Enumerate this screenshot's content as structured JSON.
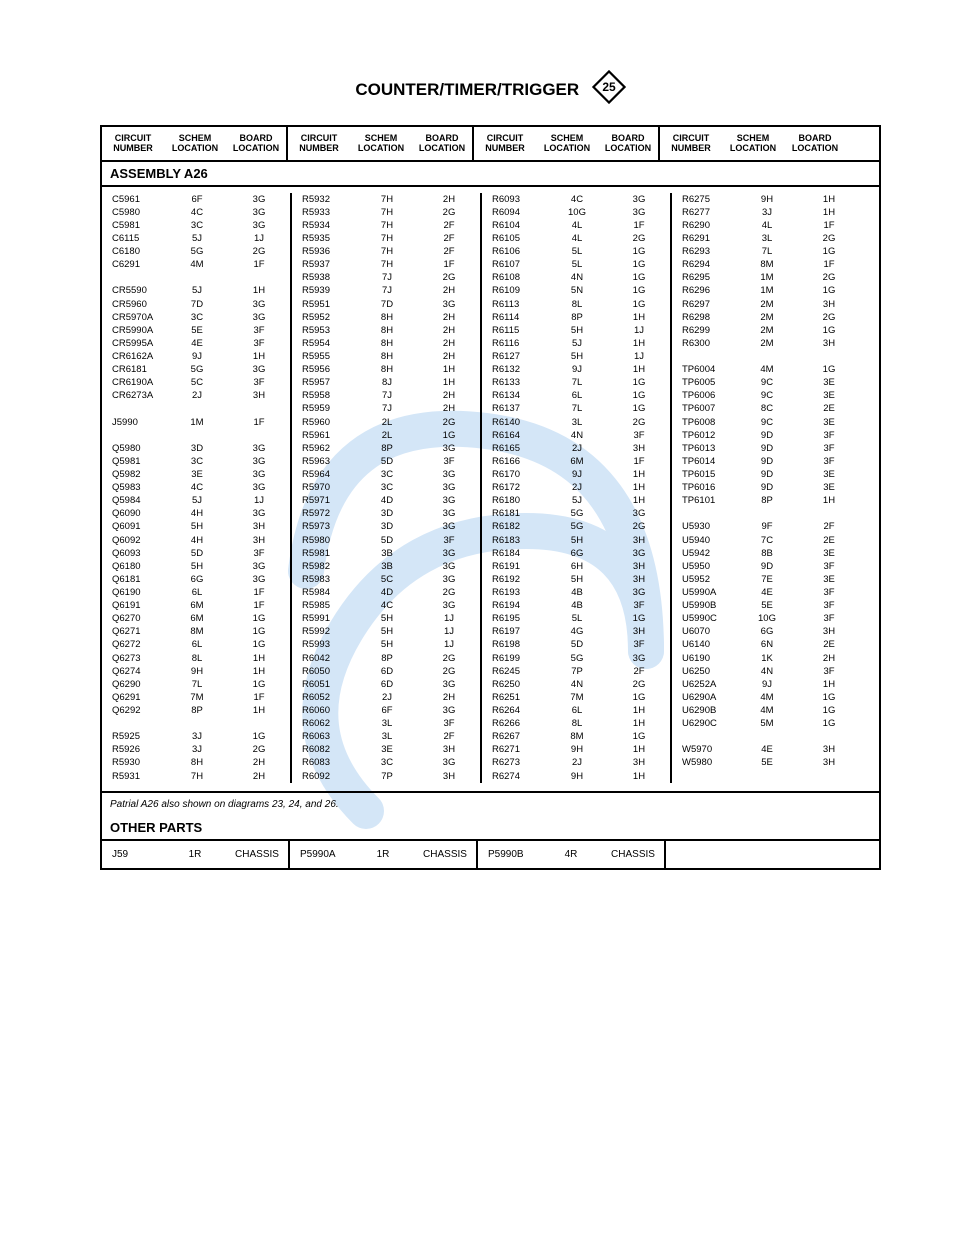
{
  "title": "COUNTER/TIMER/TRIGGER",
  "diamond_number": "25",
  "headers": {
    "circuit_number": "CIRCUIT NUMBER",
    "schem_location": "SCHEM LOCATION",
    "board_location": "BOARD LOCATION"
  },
  "section_a26": "ASSEMBLY A26",
  "note": "Patrial A26 also shown on diagrams 23, 24, and 26.",
  "section_other": "OTHER PARTS",
  "colors": {
    "border": "#000000",
    "text": "#000000",
    "watermark": "#cfe3f5",
    "background": "#ffffff"
  },
  "columns": [
    [
      [
        "C5961",
        "6F",
        "3G"
      ],
      [
        "C5980",
        "4C",
        "3G"
      ],
      [
        "C5981",
        "3C",
        "3G"
      ],
      [
        "C6115",
        "5J",
        "1J"
      ],
      [
        "C6180",
        "5G",
        "2G"
      ],
      [
        "C6291",
        "4M",
        "1F"
      ],
      [
        "",
        "",
        ""
      ],
      [
        "CR5590",
        "5J",
        "1H"
      ],
      [
        "CR5960",
        "7D",
        "3G"
      ],
      [
        "CR5970A",
        "3C",
        "3G"
      ],
      [
        "CR5990A",
        "5E",
        "3F"
      ],
      [
        "CR5995A",
        "4E",
        "3F"
      ],
      [
        "CR6162A",
        "9J",
        "1H"
      ],
      [
        "CR6181",
        "5G",
        "3G"
      ],
      [
        "CR6190A",
        "5C",
        "3F"
      ],
      [
        "CR6273A",
        "2J",
        "3H"
      ],
      [
        "",
        "",
        ""
      ],
      [
        "J5990",
        "1M",
        "1F"
      ],
      [
        "",
        "",
        ""
      ],
      [
        "Q5980",
        "3D",
        "3G"
      ],
      [
        "Q5981",
        "3C",
        "3G"
      ],
      [
        "Q5982",
        "3E",
        "3G"
      ],
      [
        "Q5983",
        "4C",
        "3G"
      ],
      [
        "Q5984",
        "5J",
        "1J"
      ],
      [
        "Q6090",
        "4H",
        "3G"
      ],
      [
        "Q6091",
        "5H",
        "3H"
      ],
      [
        "Q6092",
        "4H",
        "3H"
      ],
      [
        "Q6093",
        "5D",
        "3F"
      ],
      [
        "Q6180",
        "5H",
        "3G"
      ],
      [
        "Q6181",
        "6G",
        "3G"
      ],
      [
        "Q6190",
        "6L",
        "1F"
      ],
      [
        "Q6191",
        "6M",
        "1F"
      ],
      [
        "Q6270",
        "6M",
        "1G"
      ],
      [
        "Q6271",
        "8M",
        "1G"
      ],
      [
        "Q6272",
        "6L",
        "1G"
      ],
      [
        "Q6273",
        "8L",
        "1H"
      ],
      [
        "Q6274",
        "9H",
        "1H"
      ],
      [
        "Q6290",
        "7L",
        "1G"
      ],
      [
        "Q6291",
        "7M",
        "1F"
      ],
      [
        "Q6292",
        "8P",
        "1H"
      ],
      [
        "",
        "",
        ""
      ],
      [
        "R5925",
        "3J",
        "1G"
      ],
      [
        "R5926",
        "3J",
        "2G"
      ],
      [
        "R5930",
        "8H",
        "2H"
      ],
      [
        "R5931",
        "7H",
        "2H"
      ]
    ],
    [
      [
        "R5932",
        "7H",
        "2H"
      ],
      [
        "R5933",
        "7H",
        "2G"
      ],
      [
        "R5934",
        "7H",
        "2F"
      ],
      [
        "R5935",
        "7H",
        "2F"
      ],
      [
        "R5936",
        "7H",
        "2F"
      ],
      [
        "R5937",
        "7H",
        "1F"
      ],
      [
        "R5938",
        "7J",
        "2G"
      ],
      [
        "R5939",
        "7J",
        "2H"
      ],
      [
        "R5951",
        "7D",
        "3G"
      ],
      [
        "R5952",
        "8H",
        "2H"
      ],
      [
        "R5953",
        "8H",
        "2H"
      ],
      [
        "R5954",
        "8H",
        "2H"
      ],
      [
        "R5955",
        "8H",
        "2H"
      ],
      [
        "R5956",
        "8H",
        "1H"
      ],
      [
        "R5957",
        "8J",
        "1H"
      ],
      [
        "R5958",
        "7J",
        "2H"
      ],
      [
        "R5959",
        "7J",
        "2H"
      ],
      [
        "R5960",
        "2L",
        "2G"
      ],
      [
        "R5961",
        "2L",
        "1G"
      ],
      [
        "R5962",
        "8P",
        "3G"
      ],
      [
        "R5963",
        "5D",
        "3F"
      ],
      [
        "R5964",
        "3C",
        "3G"
      ],
      [
        "R5970",
        "3C",
        "3G"
      ],
      [
        "R5971",
        "4D",
        "3G"
      ],
      [
        "R5972",
        "3D",
        "3G"
      ],
      [
        "R5973",
        "3D",
        "3G"
      ],
      [
        "R5980",
        "5D",
        "3F"
      ],
      [
        "R5981",
        "3B",
        "3G"
      ],
      [
        "R5982",
        "3B",
        "3G"
      ],
      [
        "R5983",
        "5C",
        "3G"
      ],
      [
        "R5984",
        "4D",
        "2G"
      ],
      [
        "R5985",
        "4C",
        "3G"
      ],
      [
        "R5991",
        "5H",
        "1J"
      ],
      [
        "R5992",
        "5H",
        "1J"
      ],
      [
        "R5993",
        "5H",
        "1J"
      ],
      [
        "R6042",
        "8P",
        "2G"
      ],
      [
        "R6050",
        "6D",
        "2G"
      ],
      [
        "R6051",
        "6D",
        "3G"
      ],
      [
        "R6052",
        "2J",
        "2H"
      ],
      [
        "R6060",
        "6F",
        "3G"
      ],
      [
        "R6062",
        "3L",
        "3F"
      ],
      [
        "R6063",
        "3L",
        "2F"
      ],
      [
        "R6082",
        "3E",
        "3H"
      ],
      [
        "R6083",
        "3C",
        "3G"
      ],
      [
        "R6092",
        "7P",
        "3H"
      ]
    ],
    [
      [
        "R6093",
        "4C",
        "3G"
      ],
      [
        "R6094",
        "10G",
        "3G"
      ],
      [
        "R6104",
        "4L",
        "1F"
      ],
      [
        "R6105",
        "4L",
        "2G"
      ],
      [
        "R6106",
        "5L",
        "1G"
      ],
      [
        "R6107",
        "5L",
        "1G"
      ],
      [
        "R6108",
        "4N",
        "1G"
      ],
      [
        "R6109",
        "5N",
        "1G"
      ],
      [
        "R6113",
        "8L",
        "1G"
      ],
      [
        "R6114",
        "8P",
        "1H"
      ],
      [
        "R6115",
        "5H",
        "1J"
      ],
      [
        "R6116",
        "5J",
        "1H"
      ],
      [
        "R6127",
        "5H",
        "1J"
      ],
      [
        "R6132",
        "9J",
        "1H"
      ],
      [
        "R6133",
        "7L",
        "1G"
      ],
      [
        "R6134",
        "6L",
        "1G"
      ],
      [
        "R6137",
        "7L",
        "1G"
      ],
      [
        "R6140",
        "3L",
        "2G"
      ],
      [
        "R6164",
        "4N",
        "3F"
      ],
      [
        "R6165",
        "2J",
        "3H"
      ],
      [
        "R6166",
        "6M",
        "1F"
      ],
      [
        "R6170",
        "9J",
        "1H"
      ],
      [
        "R6172",
        "2J",
        "1H"
      ],
      [
        "R6180",
        "5J",
        "1H"
      ],
      [
        "R6181",
        "5G",
        "3G"
      ],
      [
        "R6182",
        "5G",
        "2G"
      ],
      [
        "R6183",
        "5H",
        "3H"
      ],
      [
        "R6184",
        "6G",
        "3G"
      ],
      [
        "R6191",
        "6H",
        "3H"
      ],
      [
        "R6192",
        "5H",
        "3H"
      ],
      [
        "R6193",
        "4B",
        "3G"
      ],
      [
        "R6194",
        "4B",
        "3F"
      ],
      [
        "R6195",
        "5L",
        "1G"
      ],
      [
        "R6197",
        "4G",
        "3H"
      ],
      [
        "R6198",
        "5D",
        "3F"
      ],
      [
        "R6199",
        "5G",
        "3G"
      ],
      [
        "R6245",
        "7P",
        "2F"
      ],
      [
        "R6250",
        "4N",
        "2G"
      ],
      [
        "R6251",
        "7M",
        "1G"
      ],
      [
        "R6264",
        "6L",
        "1H"
      ],
      [
        "R6266",
        "8L",
        "1H"
      ],
      [
        "R6267",
        "8M",
        "1G"
      ],
      [
        "R6271",
        "9H",
        "1H"
      ],
      [
        "R6273",
        "2J",
        "3H"
      ],
      [
        "R6274",
        "9H",
        "1H"
      ]
    ],
    [
      [
        "R6275",
        "9H",
        "1H"
      ],
      [
        "R6277",
        "3J",
        "1H"
      ],
      [
        "R6290",
        "4L",
        "1F"
      ],
      [
        "R6291",
        "3L",
        "2G"
      ],
      [
        "R6293",
        "7L",
        "1G"
      ],
      [
        "R6294",
        "8M",
        "1F"
      ],
      [
        "R6295",
        "1M",
        "2G"
      ],
      [
        "R6296",
        "1M",
        "1G"
      ],
      [
        "R6297",
        "2M",
        "3H"
      ],
      [
        "R6298",
        "2M",
        "2G"
      ],
      [
        "R6299",
        "2M",
        "1G"
      ],
      [
        "R6300",
        "2M",
        "3H"
      ],
      [
        "",
        "",
        ""
      ],
      [
        "TP6004",
        "4M",
        "1G"
      ],
      [
        "TP6005",
        "9C",
        "3E"
      ],
      [
        "TP6006",
        "9C",
        "3E"
      ],
      [
        "TP6007",
        "8C",
        "2E"
      ],
      [
        "TP6008",
        "9C",
        "3E"
      ],
      [
        "TP6012",
        "9D",
        "3F"
      ],
      [
        "TP6013",
        "9D",
        "3F"
      ],
      [
        "TP6014",
        "9D",
        "3F"
      ],
      [
        "TP6015",
        "9D",
        "3E"
      ],
      [
        "TP6016",
        "9D",
        "3E"
      ],
      [
        "TP6101",
        "8P",
        "1H"
      ],
      [
        "",
        "",
        ""
      ],
      [
        "U5930",
        "9F",
        "2F"
      ],
      [
        "U5940",
        "7C",
        "2E"
      ],
      [
        "U5942",
        "8B",
        "3E"
      ],
      [
        "U5950",
        "9D",
        "3F"
      ],
      [
        "U5952",
        "7E",
        "3E"
      ],
      [
        "U5990A",
        "4E",
        "3F"
      ],
      [
        "U5990B",
        "5E",
        "3F"
      ],
      [
        "U5990C",
        "10G",
        "3F"
      ],
      [
        "U6070",
        "6G",
        "3H"
      ],
      [
        "U6140",
        "6N",
        "2E"
      ],
      [
        "U6190",
        "1K",
        "2H"
      ],
      [
        "U6250",
        "4N",
        "3F"
      ],
      [
        "U6252A",
        "9J",
        "1H"
      ],
      [
        "U6290A",
        "4M",
        "1G"
      ],
      [
        "U6290B",
        "4M",
        "1G"
      ],
      [
        "U6290C",
        "5M",
        "1G"
      ],
      [
        "",
        "",
        ""
      ],
      [
        "W5970",
        "4E",
        "3H"
      ],
      [
        "W5980",
        "5E",
        "3H"
      ]
    ]
  ],
  "other_parts": [
    [
      "J59",
      "1R",
      "CHASSIS"
    ],
    [
      "P5990A",
      "1R",
      "CHASSIS"
    ],
    [
      "P5990B",
      "4R",
      "CHASSIS"
    ],
    [
      "",
      "",
      ""
    ]
  ],
  "watermark_color": "#d4e6f7"
}
